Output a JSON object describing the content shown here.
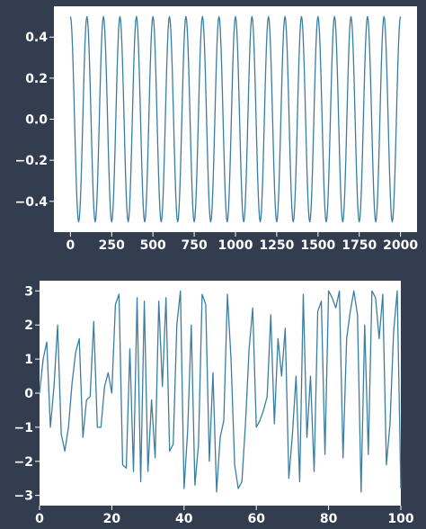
{
  "colors": {
    "background": "#333d50",
    "plot_area": "#ffffff",
    "line": "#3b7ea1",
    "tick_text": "#ffffff"
  },
  "chart_data": [
    {
      "type": "line",
      "title": "",
      "xlabel": "",
      "ylabel": "",
      "xlim": [
        -100,
        2100
      ],
      "ylim": [
        -0.55,
        0.55
      ],
      "x_ticks": [
        0,
        250,
        500,
        750,
        1000,
        1250,
        1500,
        1750,
        2000
      ],
      "x_tick_labels": [
        "0",
        "250",
        "500",
        "750",
        "1000",
        "1250",
        "1500",
        "1750",
        "2000"
      ],
      "y_ticks": [
        0.4,
        0.2,
        0.0,
        -0.2,
        -0.4
      ],
      "y_tick_labels": [
        "0.4",
        "0.2",
        "0.0",
        "−0.2",
        "−0.4"
      ],
      "grid": false,
      "legend": "none",
      "series": [
        {
          "x": [
            0,
            50,
            100,
            150,
            200,
            250,
            300,
            350,
            400,
            450,
            500,
            550,
            600,
            650,
            700,
            750,
            800,
            850,
            900,
            950,
            1000,
            1050,
            1100,
            1150,
            1200,
            1250,
            1300,
            1350,
            1400,
            1450,
            1500,
            1550,
            1600,
            1650,
            1700,
            1750,
            1800,
            1850,
            1900,
            1950,
            2000
          ],
          "y": [
            0.5,
            -0.5,
            0.5,
            -0.5,
            0.5,
            -0.5,
            0.5,
            -0.5,
            0.5,
            -0.5,
            0.5,
            -0.5,
            0.5,
            -0.5,
            0.5,
            -0.5,
            0.5,
            -0.5,
            0.5,
            -0.5,
            0.5,
            -0.5,
            0.5,
            -0.5,
            0.5,
            -0.5,
            0.5,
            -0.5,
            0.5,
            -0.5,
            0.5,
            -0.5,
            0.5,
            -0.5,
            0.5,
            -0.5,
            0.5,
            -0.5,
            0.5,
            -0.5,
            0.5
          ]
        }
      ]
    },
    {
      "type": "line",
      "title": "",
      "xlabel": "",
      "ylabel": "",
      "xlim": [
        0,
        100
      ],
      "ylim": [
        -3.3,
        3.3
      ],
      "x_ticks": [
        0,
        20,
        40,
        60,
        80,
        100
      ],
      "x_tick_labels": [
        "0",
        "20",
        "40",
        "60",
        "80",
        "100"
      ],
      "y_ticks": [
        3,
        2,
        1,
        0,
        -1,
        -2,
        -3
      ],
      "y_tick_labels": [
        "3",
        "2",
        "1",
        "0",
        "−1",
        "−2",
        "−3"
      ],
      "grid": false,
      "legend": "none",
      "series": [
        {
          "x": [
            0,
            1,
            2,
            3,
            4,
            5,
            6,
            7,
            8,
            9,
            10,
            11,
            12,
            13,
            14,
            15,
            16,
            17,
            18,
            19,
            20,
            21,
            22,
            23,
            24,
            25,
            26,
            27,
            28,
            29,
            30,
            31,
            32,
            33,
            34,
            35,
            36,
            37,
            38,
            39,
            40,
            41,
            42,
            43,
            44,
            45,
            46,
            47,
            48,
            49,
            50,
            51,
            52,
            53,
            54,
            55,
            56,
            57,
            58,
            59,
            60,
            61,
            62,
            63,
            64,
            65,
            66,
            67,
            68,
            69,
            70,
            71,
            72,
            73,
            74,
            75,
            76,
            77,
            78,
            79,
            80,
            81,
            82,
            83,
            84,
            85,
            86,
            87,
            88,
            89,
            90,
            91,
            92,
            93,
            94,
            95,
            96,
            97,
            98,
            99,
            100
          ],
          "y": [
            0.0,
            1.0,
            1.5,
            -1.0,
            0.2,
            2.0,
            -1.2,
            -1.7,
            -1.0,
            0.3,
            1.2,
            1.6,
            -1.3,
            -0.2,
            -0.1,
            2.1,
            -1.0,
            -1.0,
            0.2,
            0.6,
            0.0,
            2.6,
            2.9,
            -2.1,
            -2.2,
            1.3,
            -2.3,
            2.8,
            -2.6,
            2.7,
            -2.3,
            -0.2,
            -1.9,
            2.7,
            0.2,
            2.8,
            -1.7,
            -1.5,
            2.0,
            3.0,
            -2.8,
            -1.1,
            2.0,
            -2.7,
            -1.5,
            2.9,
            2.6,
            -2.0,
            0.6,
            -2.9,
            -1.3,
            -0.8,
            2.9,
            1.0,
            -2.1,
            -2.8,
            -2.6,
            -0.9,
            1.3,
            2.5,
            -1.0,
            -0.8,
            -0.5,
            -0.1,
            2.3,
            -0.9,
            1.6,
            0.5,
            1.9,
            -2.5,
            -1.2,
            0.5,
            -2.6,
            2.9,
            -1.3,
            0.5,
            -2.3,
            2.4,
            2.7,
            -1.8,
            3.0,
            2.8,
            2.5,
            3.0,
            -1.9,
            1.6,
            2.4,
            3.0,
            2.3,
            -2.9,
            2.0,
            -1.8,
            3.0,
            2.8,
            1.6,
            2.9,
            -2.1,
            -0.9,
            1.8,
            3.0,
            -2.8
          ]
        }
      ]
    }
  ]
}
